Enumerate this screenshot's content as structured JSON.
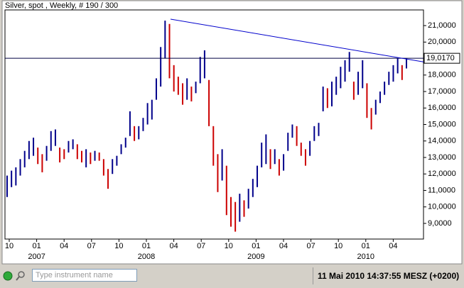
{
  "window": {
    "title": "Silver, spot , Weekly, # 190 / 300"
  },
  "chart_data": {
    "type": "ohlc",
    "title": "Silver, spot , Weekly, # 190 / 300",
    "high": [
      11900,
      12200,
      12400,
      12900,
      13400,
      14000,
      14200,
      13600,
      13200,
      13700,
      14600,
      14700,
      13600,
      13500,
      14000,
      14100,
      13800,
      13400,
      13500,
      13300,
      13400,
      13300,
      12900,
      12300,
      12900,
      13100,
      13800,
      14200,
      15800,
      14900,
      14900,
      15400,
      16300,
      16500,
      17800,
      19700,
      21300,
      21100,
      18600,
      17900,
      17500,
      17800,
      17300,
      17600,
      19100,
      19500,
      17700,
      14900,
      13200,
      13500,
      12500,
      10600,
      10300,
      10800,
      10400,
      11100,
      11700,
      12500,
      13900,
      14400,
      13500,
      13500,
      12900,
      13200,
      14500,
      15000,
      14900,
      13900,
      13500,
      14000,
      14900,
      15100,
      17300,
      17200,
      17600,
      17900,
      18500,
      18900,
      19400,
      17600,
      18200,
      18900,
      17500,
      16000,
      16500,
      17000,
      17600,
      18200,
      18600,
      19000,
      18600,
      19000
    ],
    "low": [
      10600,
      11200,
      11300,
      11900,
      12400,
      12900,
      13100,
      12600,
      12100,
      12800,
      13400,
      13700,
      12700,
      12900,
      13300,
      13500,
      12900,
      12700,
      12400,
      12600,
      12800,
      12800,
      11900,
      11100,
      12000,
      12500,
      13200,
      13600,
      14300,
      14000,
      14100,
      14600,
      15000,
      15300,
      16500,
      17300,
      19000,
      17800,
      17000,
      16800,
      16200,
      16500,
      16400,
      16900,
      17500,
      17800,
      14900,
      12500,
      10900,
      11600,
      9500,
      8800,
      8500,
      9100,
      9400,
      9900,
      10600,
      11200,
      12400,
      12600,
      12300,
      12600,
      11900,
      12200,
      13400,
      14200,
      13700,
      13100,
      12500,
      13100,
      14000,
      14300,
      15800,
      16000,
      16100,
      16800,
      17200,
      17600,
      18200,
      16500,
      16800,
      17200,
      15400,
      14700,
      15600,
      16300,
      16800,
      17400,
      17600,
      18100,
      17700,
      18400
    ],
    "up_color": "#00008b",
    "down_color": "#cc0000",
    "ylim": [
      8050,
      21950
    ],
    "yticks": [
      {
        "value": 9000,
        "label": "9,0000"
      },
      {
        "value": 10000,
        "label": "10,0000"
      },
      {
        "value": 11000,
        "label": "11,0000"
      },
      {
        "value": 12000,
        "label": "12,0000"
      },
      {
        "value": 13000,
        "label": "13,0000"
      },
      {
        "value": 14000,
        "label": "14,0000"
      },
      {
        "value": 15000,
        "label": "15,0000"
      },
      {
        "value": 16000,
        "label": "16,0000"
      },
      {
        "value": 17000,
        "label": "17,0000"
      },
      {
        "value": 18000,
        "label": "18,0000"
      },
      {
        "value": 19000,
        "label": "19,0000"
      },
      {
        "value": 20000,
        "label": "20,0000"
      },
      {
        "value": 21000,
        "label": "21,0000"
      }
    ],
    "xticks": [
      "10",
      "01",
      "04",
      "07",
      "10",
      "01",
      "04",
      "07",
      "10",
      "01",
      "04",
      "07",
      "10",
      "01",
      "04"
    ],
    "years": [
      "2007",
      "2008",
      "2009",
      "2010"
    ],
    "price_line": {
      "value": 19017,
      "label": "19,0170"
    },
    "trendline": {
      "start": 21390,
      "end": 18800
    }
  },
  "toolbar": {
    "search_placeholder": "Type instrument name",
    "status": "11 Mai 2010 14:37:55  MESZ (+0200)"
  }
}
